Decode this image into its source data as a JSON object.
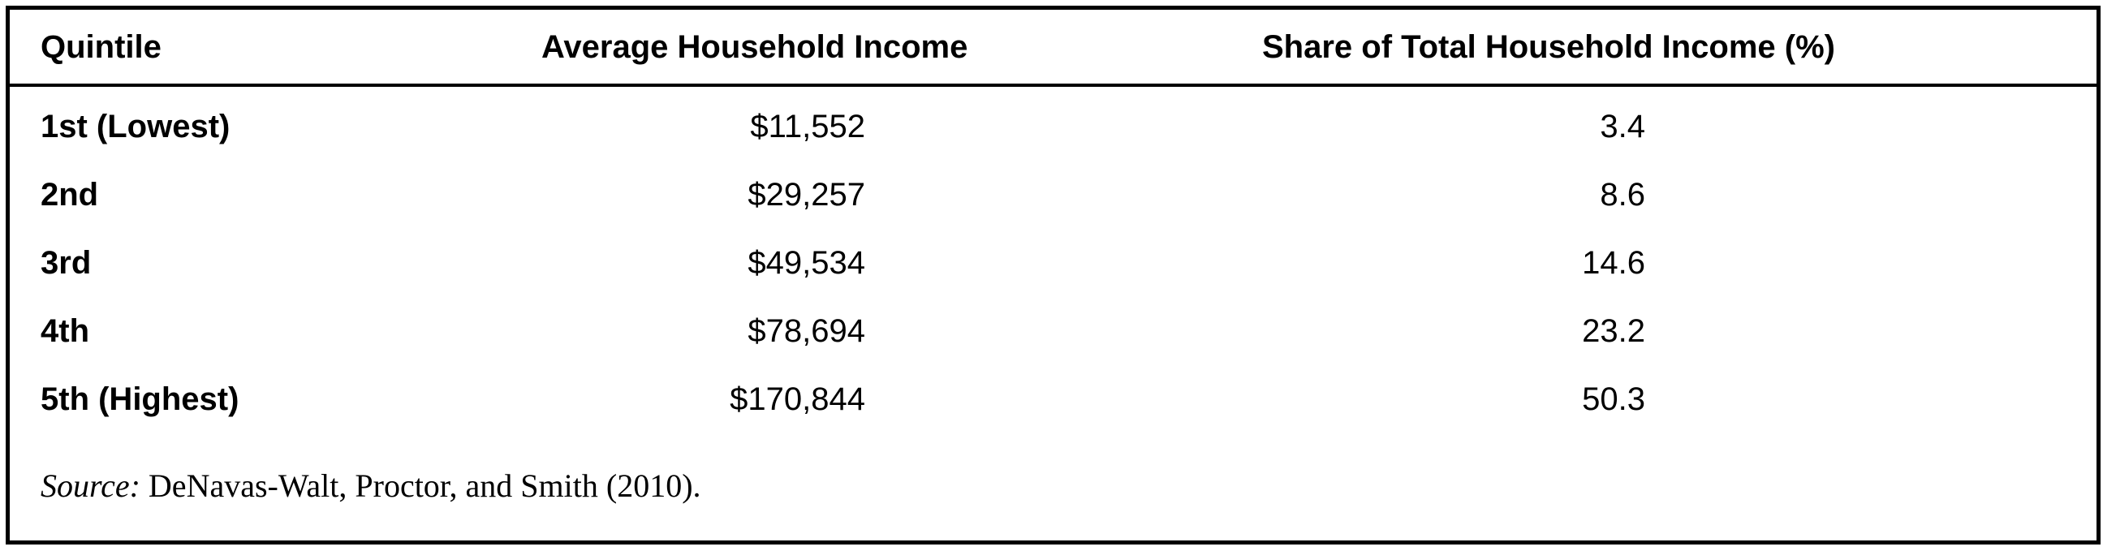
{
  "table": {
    "headers": {
      "quintile": "Quintile",
      "income": "Average Household Income",
      "share": "Share of Total Household Income (%)"
    },
    "rows": [
      {
        "quintile": "1st (Lowest)",
        "income": "$11,552",
        "share": "3.4"
      },
      {
        "quintile": "2nd",
        "income": "$29,257",
        "share": "8.6"
      },
      {
        "quintile": "3rd",
        "income": "$49,534",
        "share": "14.6"
      },
      {
        "quintile": "4th",
        "income": "$78,694",
        "share": "23.2"
      },
      {
        "quintile": "5th (Highest)",
        "income": "$170,844",
        "share": "50.3"
      }
    ]
  },
  "source": {
    "label": "Source:",
    "text": " DeNavas-Walt, Proctor, and Smith (2010)."
  }
}
